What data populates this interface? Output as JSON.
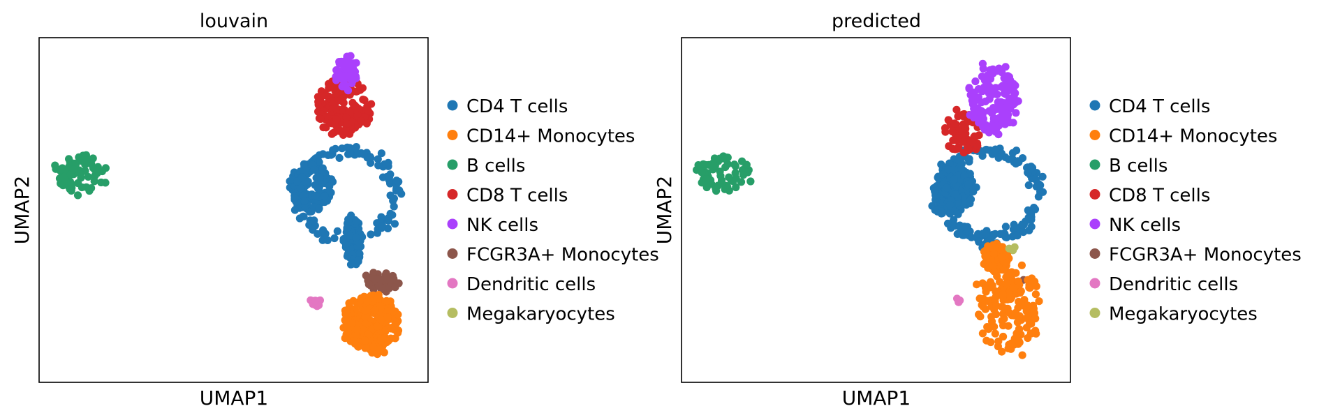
{
  "colors": {
    "CD4 T cells": "#1f77b4",
    "CD14+ Monocytes": "#ff7f0e",
    "B cells": "#279e68",
    "CD8 T cells": "#d62728",
    "NK cells": "#aa40fc",
    "FCGR3A+ Monocytes": "#8c564b",
    "Dendritic cells": "#e377c2",
    "Megakaryocytes": "#b5bd61"
  },
  "chart_data": [
    {
      "type": "scatter",
      "title": "louvain",
      "xlabel": "UMAP1",
      "ylabel": "UMAP2",
      "xticks": "none",
      "yticks": "none",
      "grid": false,
      "legend": {
        "placement": "right-outside",
        "entries": [
          "CD4 T cells",
          "CD14+ Monocytes",
          "B cells",
          "CD8 T cells",
          "NK cells",
          "FCGR3A+ Monocytes",
          "Dendritic cells",
          "Megakaryocytes"
        ]
      },
      "series": [
        {
          "name": "CD4 T cells",
          "n": 380
        },
        {
          "name": "CD14+ Monocytes",
          "n": 260
        },
        {
          "name": "B cells",
          "n": 65
        },
        {
          "name": "CD8 T cells",
          "n": 160
        },
        {
          "name": "NK cells",
          "n": 45
        },
        {
          "name": "FCGR3A+ Monocytes",
          "n": 45
        },
        {
          "name": "Dendritic cells",
          "n": 12
        },
        {
          "name": "Megakaryocytes",
          "n": 0
        }
      ]
    },
    {
      "type": "scatter",
      "title": "predicted",
      "xlabel": "UMAP1",
      "ylabel": "UMAP2",
      "xticks": "none",
      "yticks": "none",
      "grid": false,
      "legend": {
        "placement": "right-outside",
        "entries": [
          "CD4 T cells",
          "CD14+ Monocytes",
          "B cells",
          "CD8 T cells",
          "NK cells",
          "FCGR3A+ Monocytes",
          "Dendritic cells",
          "Megakaryocytes"
        ]
      },
      "series": [
        {
          "name": "CD4 T cells",
          "n": 360
        },
        {
          "name": "CD14+ Monocytes",
          "n": 310
        },
        {
          "name": "B cells",
          "n": 67
        },
        {
          "name": "CD8 T cells",
          "n": 60
        },
        {
          "name": "NK cells",
          "n": 150
        },
        {
          "name": "FCGR3A+ Monocytes",
          "n": 3
        },
        {
          "name": "Dendritic cells",
          "n": 4
        },
        {
          "name": "Megakaryocytes",
          "n": 3
        }
      ]
    }
  ]
}
